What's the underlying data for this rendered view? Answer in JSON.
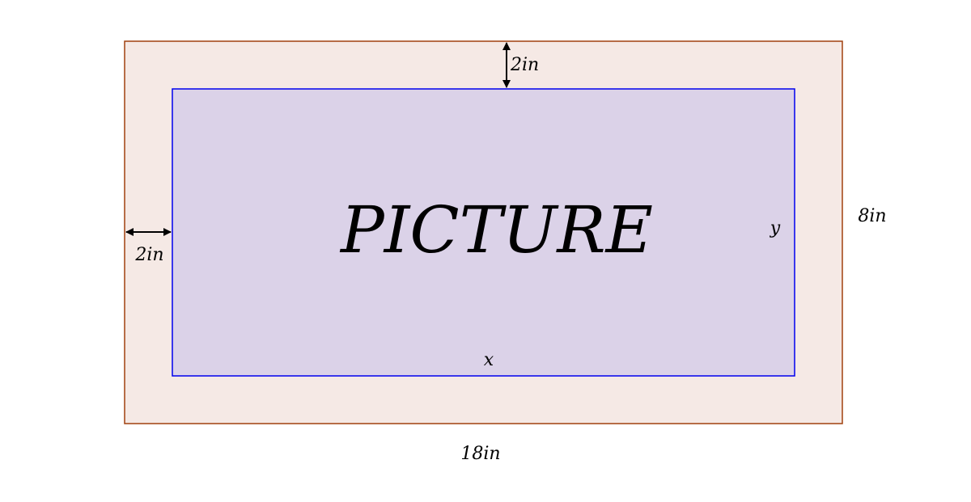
{
  "diagram": {
    "picture_label": "PICTURE",
    "top_margin_label": "2in",
    "left_margin_label": "2in",
    "inner_width_label": "x",
    "inner_height_label": "y",
    "outer_width_label": "18in",
    "outer_height_label": "8in",
    "colors": {
      "frame_fill": "#f5e9e5",
      "frame_border": "#a0400e",
      "picture_fill": "#dbd2e8",
      "picture_border": "#0000ee",
      "arrow": "#000000"
    }
  }
}
